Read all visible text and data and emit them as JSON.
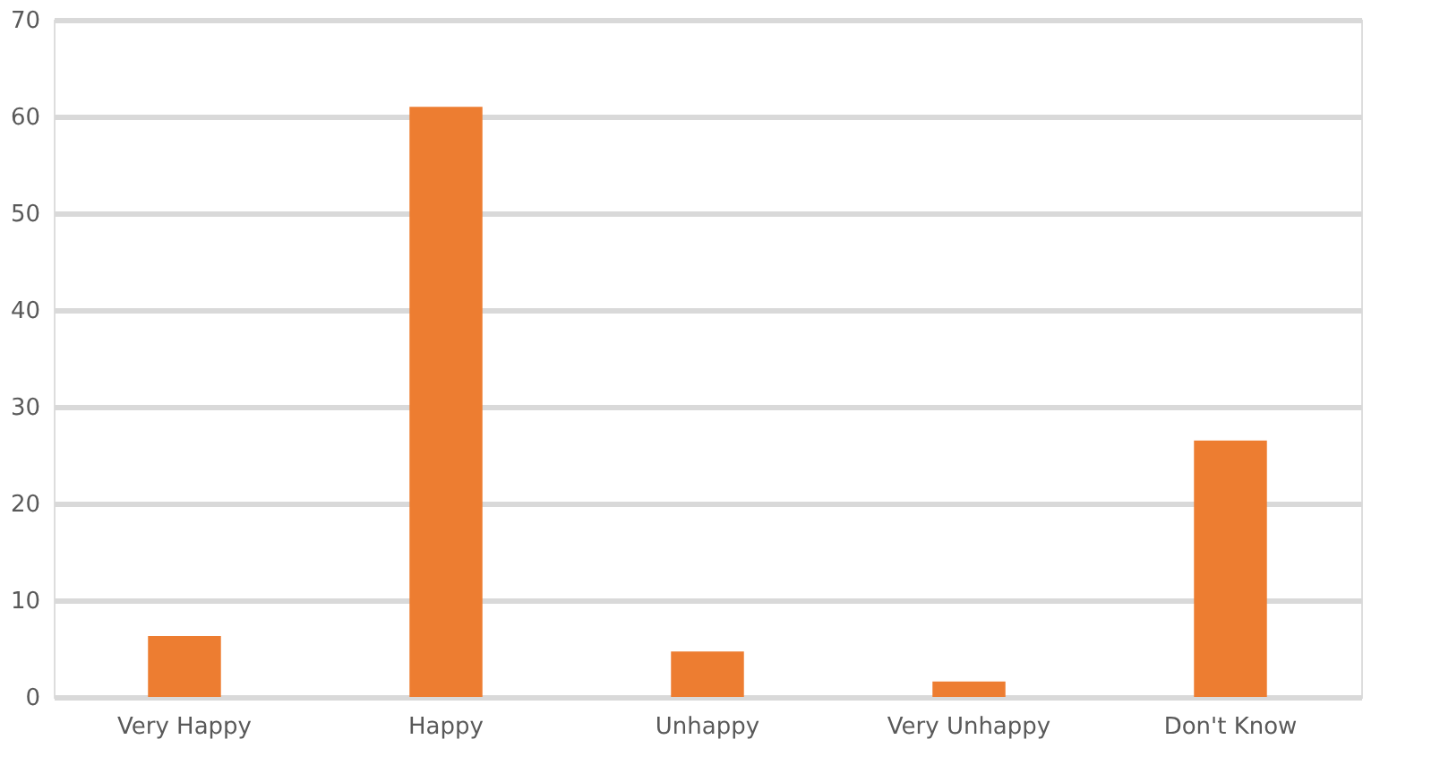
{
  "chart_data": {
    "type": "bar",
    "categories": [
      "Very Happy",
      "Happy",
      "Unhappy",
      "Very Unhappy",
      "Don't Know"
    ],
    "values": [
      6.3,
      61,
      4.7,
      1.6,
      26.5
    ],
    "color": "#ed7d31",
    "ylim": [
      0,
      70
    ],
    "yticks": [
      0,
      10,
      20,
      30,
      40,
      50,
      60,
      70
    ],
    "grid": "y"
  }
}
